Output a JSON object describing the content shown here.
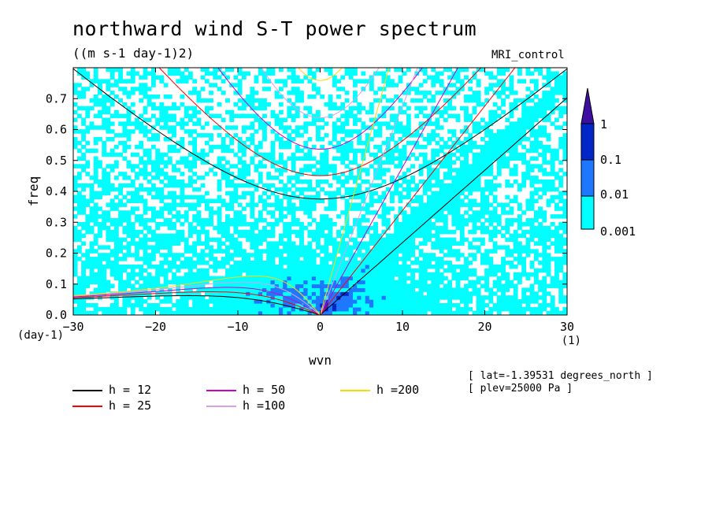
{
  "title": "northward wind S-T power spectrum",
  "subtitle": "((m s-1 day-1)2)",
  "run_name": "MRI_control",
  "meta": [
    "[ lat=-1.39531 degrees_north ]",
    "[ plev=25000 Pa ]"
  ],
  "colorbar": {
    "levels": [
      "1",
      "0.1",
      "0.01",
      "0.001"
    ],
    "colors": [
      "#00ffff",
      "#1e78ff",
      "#0026c8",
      "#3c0fa0"
    ]
  },
  "legend": [
    {
      "label": "h = 12",
      "color": "#000000"
    },
    {
      "label": "h = 25",
      "color": "#ff0000"
    },
    {
      "label": "h = 50",
      "color": "#cc00cc"
    },
    {
      "label": "h =100",
      "color": "#d8a0e8"
    },
    {
      "label": "h =200",
      "color": "#ffd700"
    }
  ],
  "chart_data": {
    "type": "heatmap",
    "title": "northward wind S-T power spectrum",
    "xlabel": "wvn",
    "ylabel": "freq",
    "x_unit": "(1)",
    "y_unit": "(day-1)",
    "xlim": [
      -30,
      30
    ],
    "ylim": [
      0,
      0.8
    ],
    "x_ticks": [
      -30,
      -20,
      -10,
      0,
      10,
      20,
      30
    ],
    "y_ticks": [
      0.0,
      0.1,
      0.2,
      0.3,
      0.4,
      0.5,
      0.6,
      0.7
    ],
    "x_tick_labels": [
      "−30",
      "−20",
      "−10",
      "0",
      "10",
      "20",
      "30"
    ],
    "y_tick_labels": [
      "0.0",
      "0.1",
      "0.2",
      "0.3",
      "0.4",
      "0.5",
      "0.6",
      "0.7"
    ],
    "contour_levels": [
      0.001,
      0.01,
      0.1,
      1
    ],
    "dispersion_curves": [
      {
        "h": 12,
        "color": "#000000"
      },
      {
        "h": 25,
        "color": "#ff0000"
      },
      {
        "h": 50,
        "color": "#cc00cc"
      },
      {
        "h": 100,
        "color": "#d8a0e8"
      },
      {
        "h": 200,
        "color": "#ffd700"
      }
    ]
  }
}
